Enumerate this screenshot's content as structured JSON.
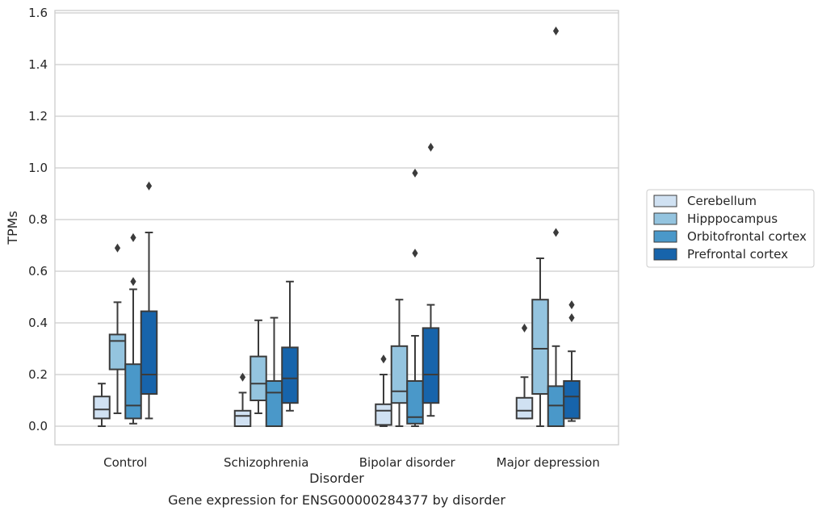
{
  "chart_data": {
    "type": "box",
    "title": "",
    "caption": "Gene expression for ENSG00000284377 by disorder",
    "xlabel": "Disorder",
    "ylabel": "TPMs",
    "ylim": [
      -0.07,
      1.61
    ],
    "yticks": [
      "0.0",
      "0.2",
      "0.4",
      "0.6",
      "0.8",
      "1.0",
      "1.2",
      "1.4",
      "1.6"
    ],
    "categories": [
      "Control",
      "Schizophrenia",
      "Bipolar disorder",
      "Major depression"
    ],
    "grid": "horizontal",
    "legend_position": "right",
    "series": [
      {
        "name": "Cerebellum",
        "color": "#d0e1f2",
        "boxes": [
          {
            "whislo": 0.0,
            "q1": 0.03,
            "med": 0.065,
            "q3": 0.115,
            "whishi": 0.165,
            "fliers": []
          },
          {
            "whislo": 0.0,
            "q1": 0.0,
            "med": 0.04,
            "q3": 0.06,
            "whishi": 0.13,
            "fliers": [
              0.19
            ]
          },
          {
            "whislo": 0.0,
            "q1": 0.005,
            "med": 0.06,
            "q3": 0.085,
            "whishi": 0.2,
            "fliers": [
              0.26
            ]
          },
          {
            "whislo": 0.03,
            "q1": 0.03,
            "med": 0.06,
            "q3": 0.11,
            "whishi": 0.19,
            "fliers": [
              0.38
            ]
          }
        ]
      },
      {
        "name": "Hipppocampus",
        "color": "#94c4df",
        "boxes": [
          {
            "whislo": 0.05,
            "q1": 0.22,
            "med": 0.33,
            "q3": 0.355,
            "whishi": 0.48,
            "fliers": [
              0.69
            ]
          },
          {
            "whislo": 0.05,
            "q1": 0.1,
            "med": 0.165,
            "q3": 0.27,
            "whishi": 0.41,
            "fliers": []
          },
          {
            "whislo": 0.0,
            "q1": 0.09,
            "med": 0.135,
            "q3": 0.31,
            "whishi": 0.49,
            "fliers": []
          },
          {
            "whislo": 0.0,
            "q1": 0.125,
            "med": 0.3,
            "q3": 0.49,
            "whishi": 0.65,
            "fliers": []
          }
        ]
      },
      {
        "name": "Orbitofrontal cortex",
        "color": "#4a98c9",
        "boxes": [
          {
            "whislo": 0.01,
            "q1": 0.03,
            "med": 0.08,
            "q3": 0.24,
            "whishi": 0.53,
            "fliers": [
              0.56,
              0.73
            ]
          },
          {
            "whislo": 0.0,
            "q1": 0.0,
            "med": 0.13,
            "q3": 0.175,
            "whishi": 0.42,
            "fliers": []
          },
          {
            "whislo": 0.0,
            "q1": 0.01,
            "med": 0.035,
            "q3": 0.175,
            "whishi": 0.35,
            "fliers": [
              0.67,
              0.98
            ]
          },
          {
            "whislo": 0.0,
            "q1": 0.0,
            "med": 0.08,
            "q3": 0.155,
            "whishi": 0.31,
            "fliers": [
              0.75,
              1.53
            ]
          }
        ]
      },
      {
        "name": "Prefrontal cortex",
        "color": "#1764ab",
        "boxes": [
          {
            "whislo": 0.03,
            "q1": 0.125,
            "med": 0.2,
            "q3": 0.445,
            "whishi": 0.75,
            "fliers": [
              0.93
            ]
          },
          {
            "whislo": 0.06,
            "q1": 0.09,
            "med": 0.185,
            "q3": 0.305,
            "whishi": 0.56,
            "fliers": []
          },
          {
            "whislo": 0.04,
            "q1": 0.09,
            "med": 0.2,
            "q3": 0.38,
            "whishi": 0.47,
            "fliers": [
              1.08
            ]
          },
          {
            "whislo": 0.02,
            "q1": 0.03,
            "med": 0.115,
            "q3": 0.175,
            "whishi": 0.29,
            "fliers": [
              0.42,
              0.47
            ]
          }
        ]
      }
    ]
  }
}
